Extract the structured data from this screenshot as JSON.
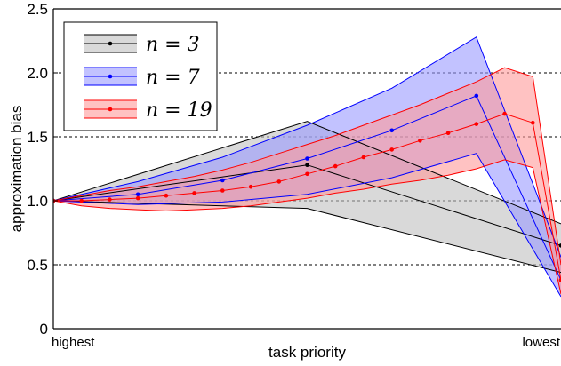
{
  "chart_data": {
    "type": "line",
    "title": "",
    "xlabel": "task priority",
    "ylabel": "approximation bias",
    "x_tick_labels": {
      "left": "highest",
      "right": "lowest"
    },
    "x_range": [
      0,
      1
    ],
    "ylim": [
      0,
      2.5
    ],
    "y_ticks": [
      "0",
      "0.5",
      "1.0",
      "1.5",
      "2.0",
      "2.5"
    ],
    "y_tick_values": [
      0,
      0.5,
      1.0,
      1.5,
      2.0,
      2.5
    ],
    "grid": {
      "style": "dashed",
      "axis": "y",
      "at": [
        0.5,
        1.0,
        1.5,
        2.0
      ]
    },
    "legend": "top-left",
    "series": [
      {
        "name": "n = 3",
        "legend_label": "n = 3",
        "color": "#000000",
        "fill": "#bfbfbf",
        "x": [
          0.0,
          0.5,
          1.0
        ],
        "mean": [
          1.0,
          1.28,
          0.65
        ],
        "upper": [
          1.0,
          1.62,
          0.82
        ],
        "lower": [
          1.0,
          0.94,
          0.44
        ]
      },
      {
        "name": "n = 7",
        "legend_label": "n = 7",
        "color": "#0000ff",
        "fill": "#9999ff",
        "x": [
          0.0,
          0.1667,
          0.3333,
          0.5,
          0.6667,
          0.8333,
          1.0
        ],
        "mean": [
          1.0,
          1.05,
          1.16,
          1.33,
          1.55,
          1.82,
          0.38
        ],
        "upper": [
          1.0,
          1.15,
          1.34,
          1.59,
          1.88,
          2.28,
          0.56
        ],
        "lower": [
          1.0,
          0.97,
          0.99,
          1.05,
          1.18,
          1.37,
          0.25
        ]
      },
      {
        "name": "n = 19",
        "legend_label": "n = 19",
        "color": "#ff0000",
        "fill": "#ff9999",
        "x": [
          0.0,
          0.0556,
          0.1111,
          0.1667,
          0.2222,
          0.2778,
          0.3333,
          0.3889,
          0.4444,
          0.5,
          0.5556,
          0.6111,
          0.6667,
          0.7222,
          0.7778,
          0.8333,
          0.8889,
          0.9444,
          1.0
        ],
        "mean": [
          1.0,
          1.0,
          1.01,
          1.02,
          1.04,
          1.06,
          1.08,
          1.11,
          1.15,
          1.21,
          1.27,
          1.34,
          1.4,
          1.47,
          1.53,
          1.6,
          1.68,
          1.61,
          0.38
        ],
        "upper": [
          1.0,
          1.04,
          1.08,
          1.11,
          1.15,
          1.19,
          1.24,
          1.3,
          1.37,
          1.44,
          1.51,
          1.59,
          1.67,
          1.75,
          1.84,
          1.93,
          2.04,
          1.97,
          0.5
        ],
        "lower": [
          1.0,
          0.96,
          0.94,
          0.93,
          0.92,
          0.93,
          0.94,
          0.96,
          0.99,
          1.02,
          1.06,
          1.09,
          1.13,
          1.16,
          1.2,
          1.25,
          1.32,
          1.26,
          0.27
        ]
      }
    ]
  }
}
